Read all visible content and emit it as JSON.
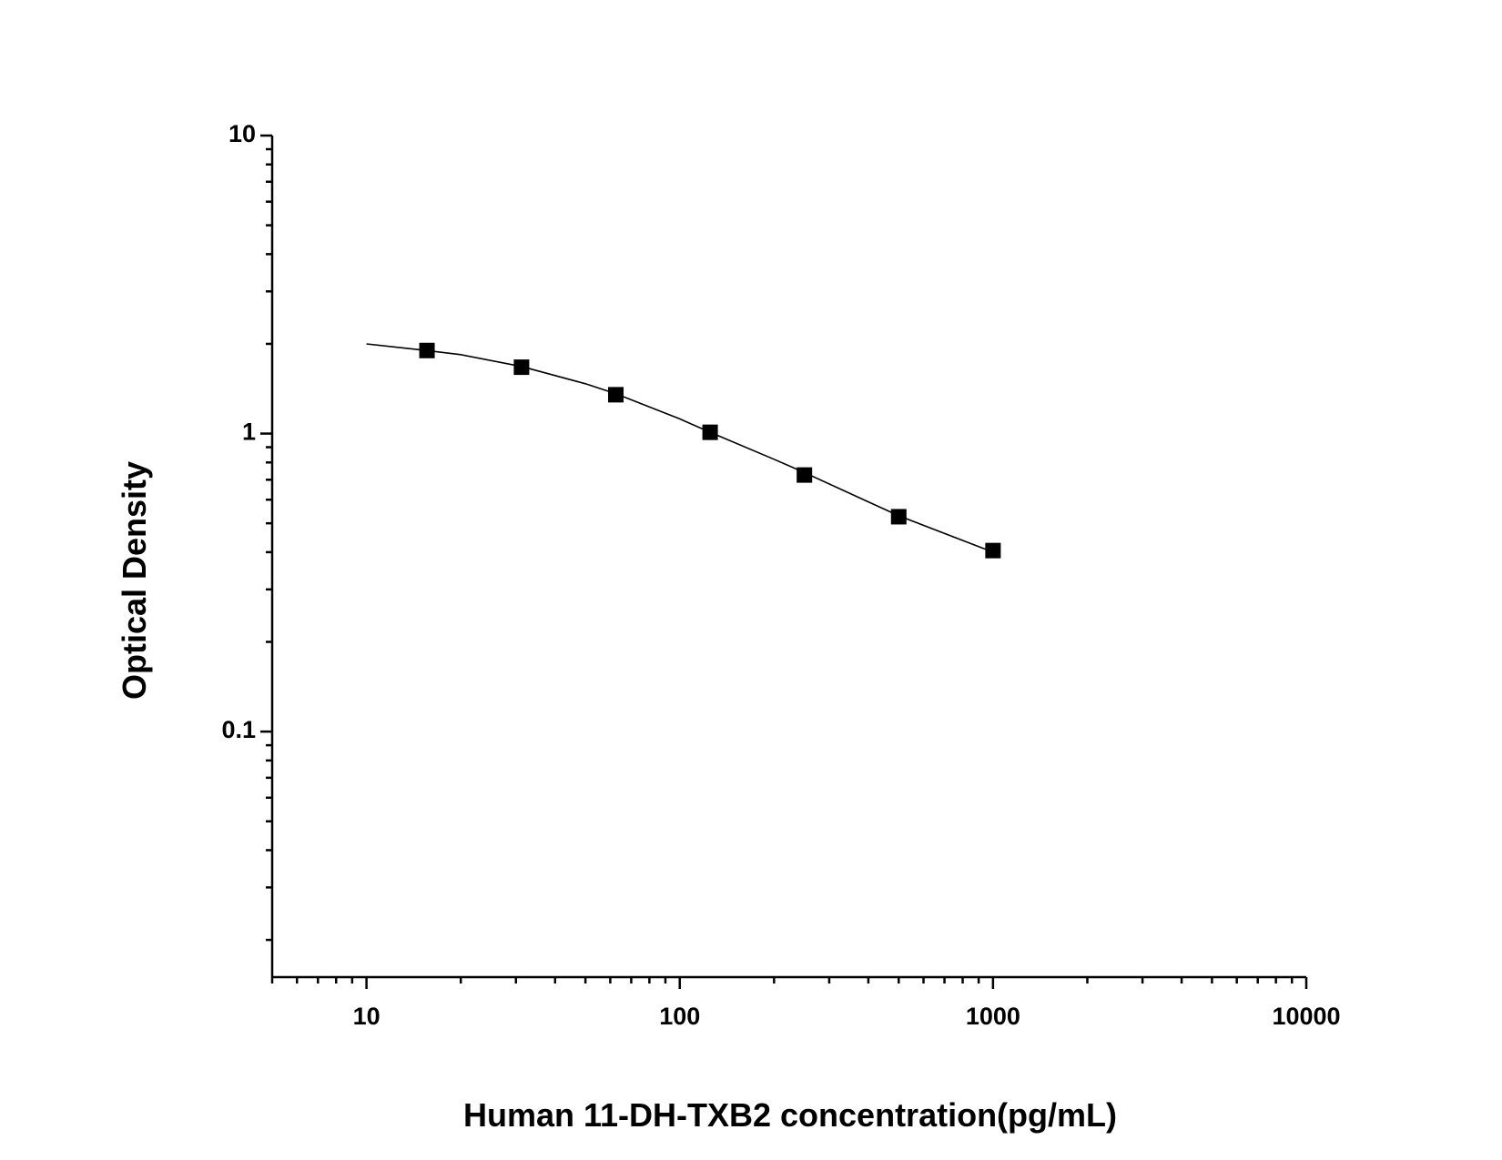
{
  "chart_data": {
    "type": "scatter",
    "x_label": "Human 11-DH-TXB2 concentration(pg/mL)",
    "y_label": "Optical Density",
    "x": [
      15.6,
      31.25,
      62.5,
      125,
      250,
      500,
      1000
    ],
    "series": [
      {
        "color": "#000000",
        "values": [
          1.9,
          1.67,
          1.35,
          1.01,
          0.726,
          0.526,
          0.405
        ]
      }
    ],
    "curve": {
      "x": [
        10,
        15.6,
        20,
        31.25,
        50,
        62.5,
        100,
        125,
        200,
        250,
        400,
        500,
        1000
      ],
      "y": [
        2.0,
        1.9,
        1.84,
        1.68,
        1.47,
        1.36,
        1.12,
        1.01,
        0.82,
        0.74,
        0.59,
        0.53,
        0.4
      ]
    },
    "xlim": [
      5,
      10000
    ],
    "ylim": [
      0.015,
      10
    ],
    "xticks": [
      10,
      100,
      1000,
      10000
    ],
    "yticks": [
      0.1,
      1,
      10
    ],
    "xscale": "log",
    "yscale": "log",
    "minor_ticks": true,
    "grid": false
  }
}
